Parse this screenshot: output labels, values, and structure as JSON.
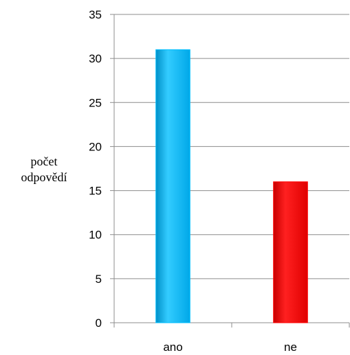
{
  "chart_data": {
    "type": "bar",
    "title": "",
    "xlabel": "",
    "ylabel_lines": [
      "počet",
      "odpovědí"
    ],
    "categories": [
      "ano",
      "ne"
    ],
    "values": [
      31,
      16
    ],
    "bar_colors": [
      "#00bfff",
      "#ff0000"
    ],
    "ylim": [
      0,
      35
    ],
    "yticks": [
      0,
      5,
      10,
      15,
      20,
      25,
      30,
      35
    ],
    "ytick_labels": [
      "0",
      "5",
      "10",
      "15",
      "20",
      "25",
      "30",
      "35"
    ],
    "grid": true,
    "legend": "none"
  }
}
